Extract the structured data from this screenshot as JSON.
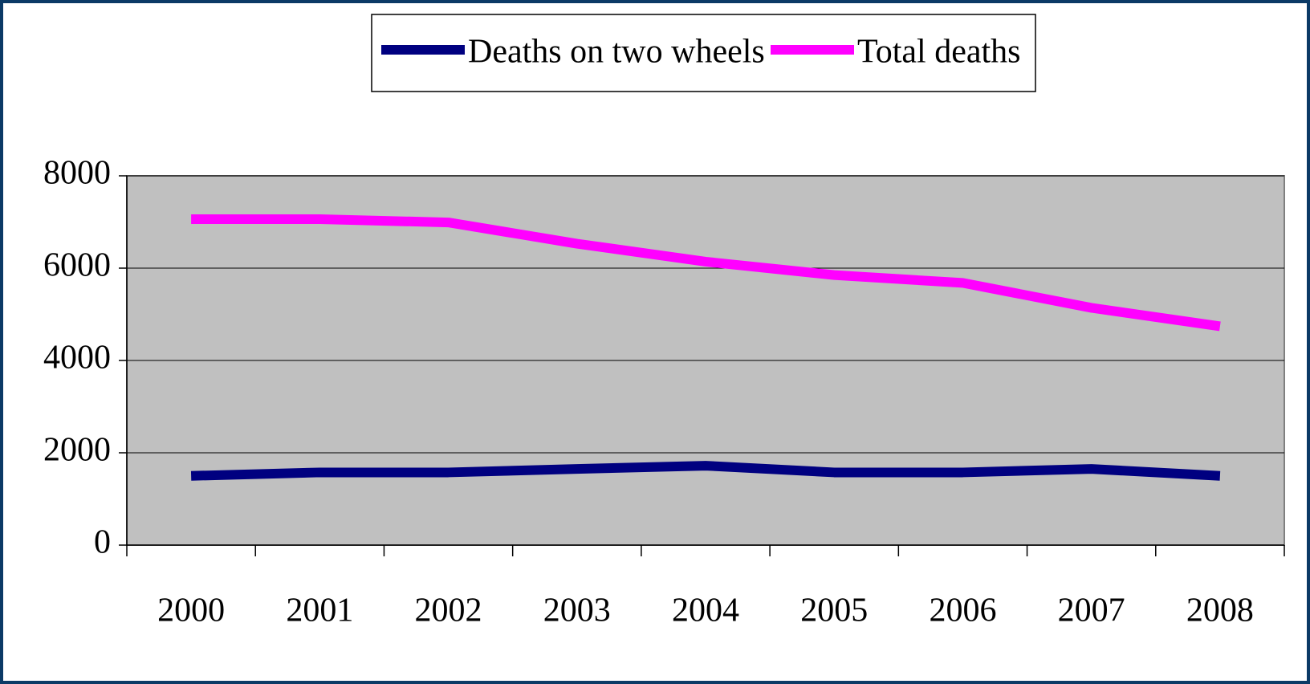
{
  "chart_data": {
    "type": "line",
    "categories": [
      "2000",
      "2001",
      "2002",
      "2003",
      "2004",
      "2005",
      "2006",
      "2007",
      "2008"
    ],
    "series": [
      {
        "name": "Deaths on two wheels",
        "color": "#000080",
        "values": [
          1500,
          1575,
          1575,
          1650,
          1720,
          1575,
          1575,
          1650,
          1500
        ]
      },
      {
        "name": "Total deaths",
        "color": "#ff00ff",
        "values": [
          7060,
          7060,
          6990,
          6530,
          6140,
          5850,
          5680,
          5140,
          4740
        ]
      }
    ],
    "ylim": [
      0,
      8000
    ],
    "yticks": [
      0,
      2000,
      4000,
      6000,
      8000
    ],
    "grid": true,
    "legend": "top"
  }
}
